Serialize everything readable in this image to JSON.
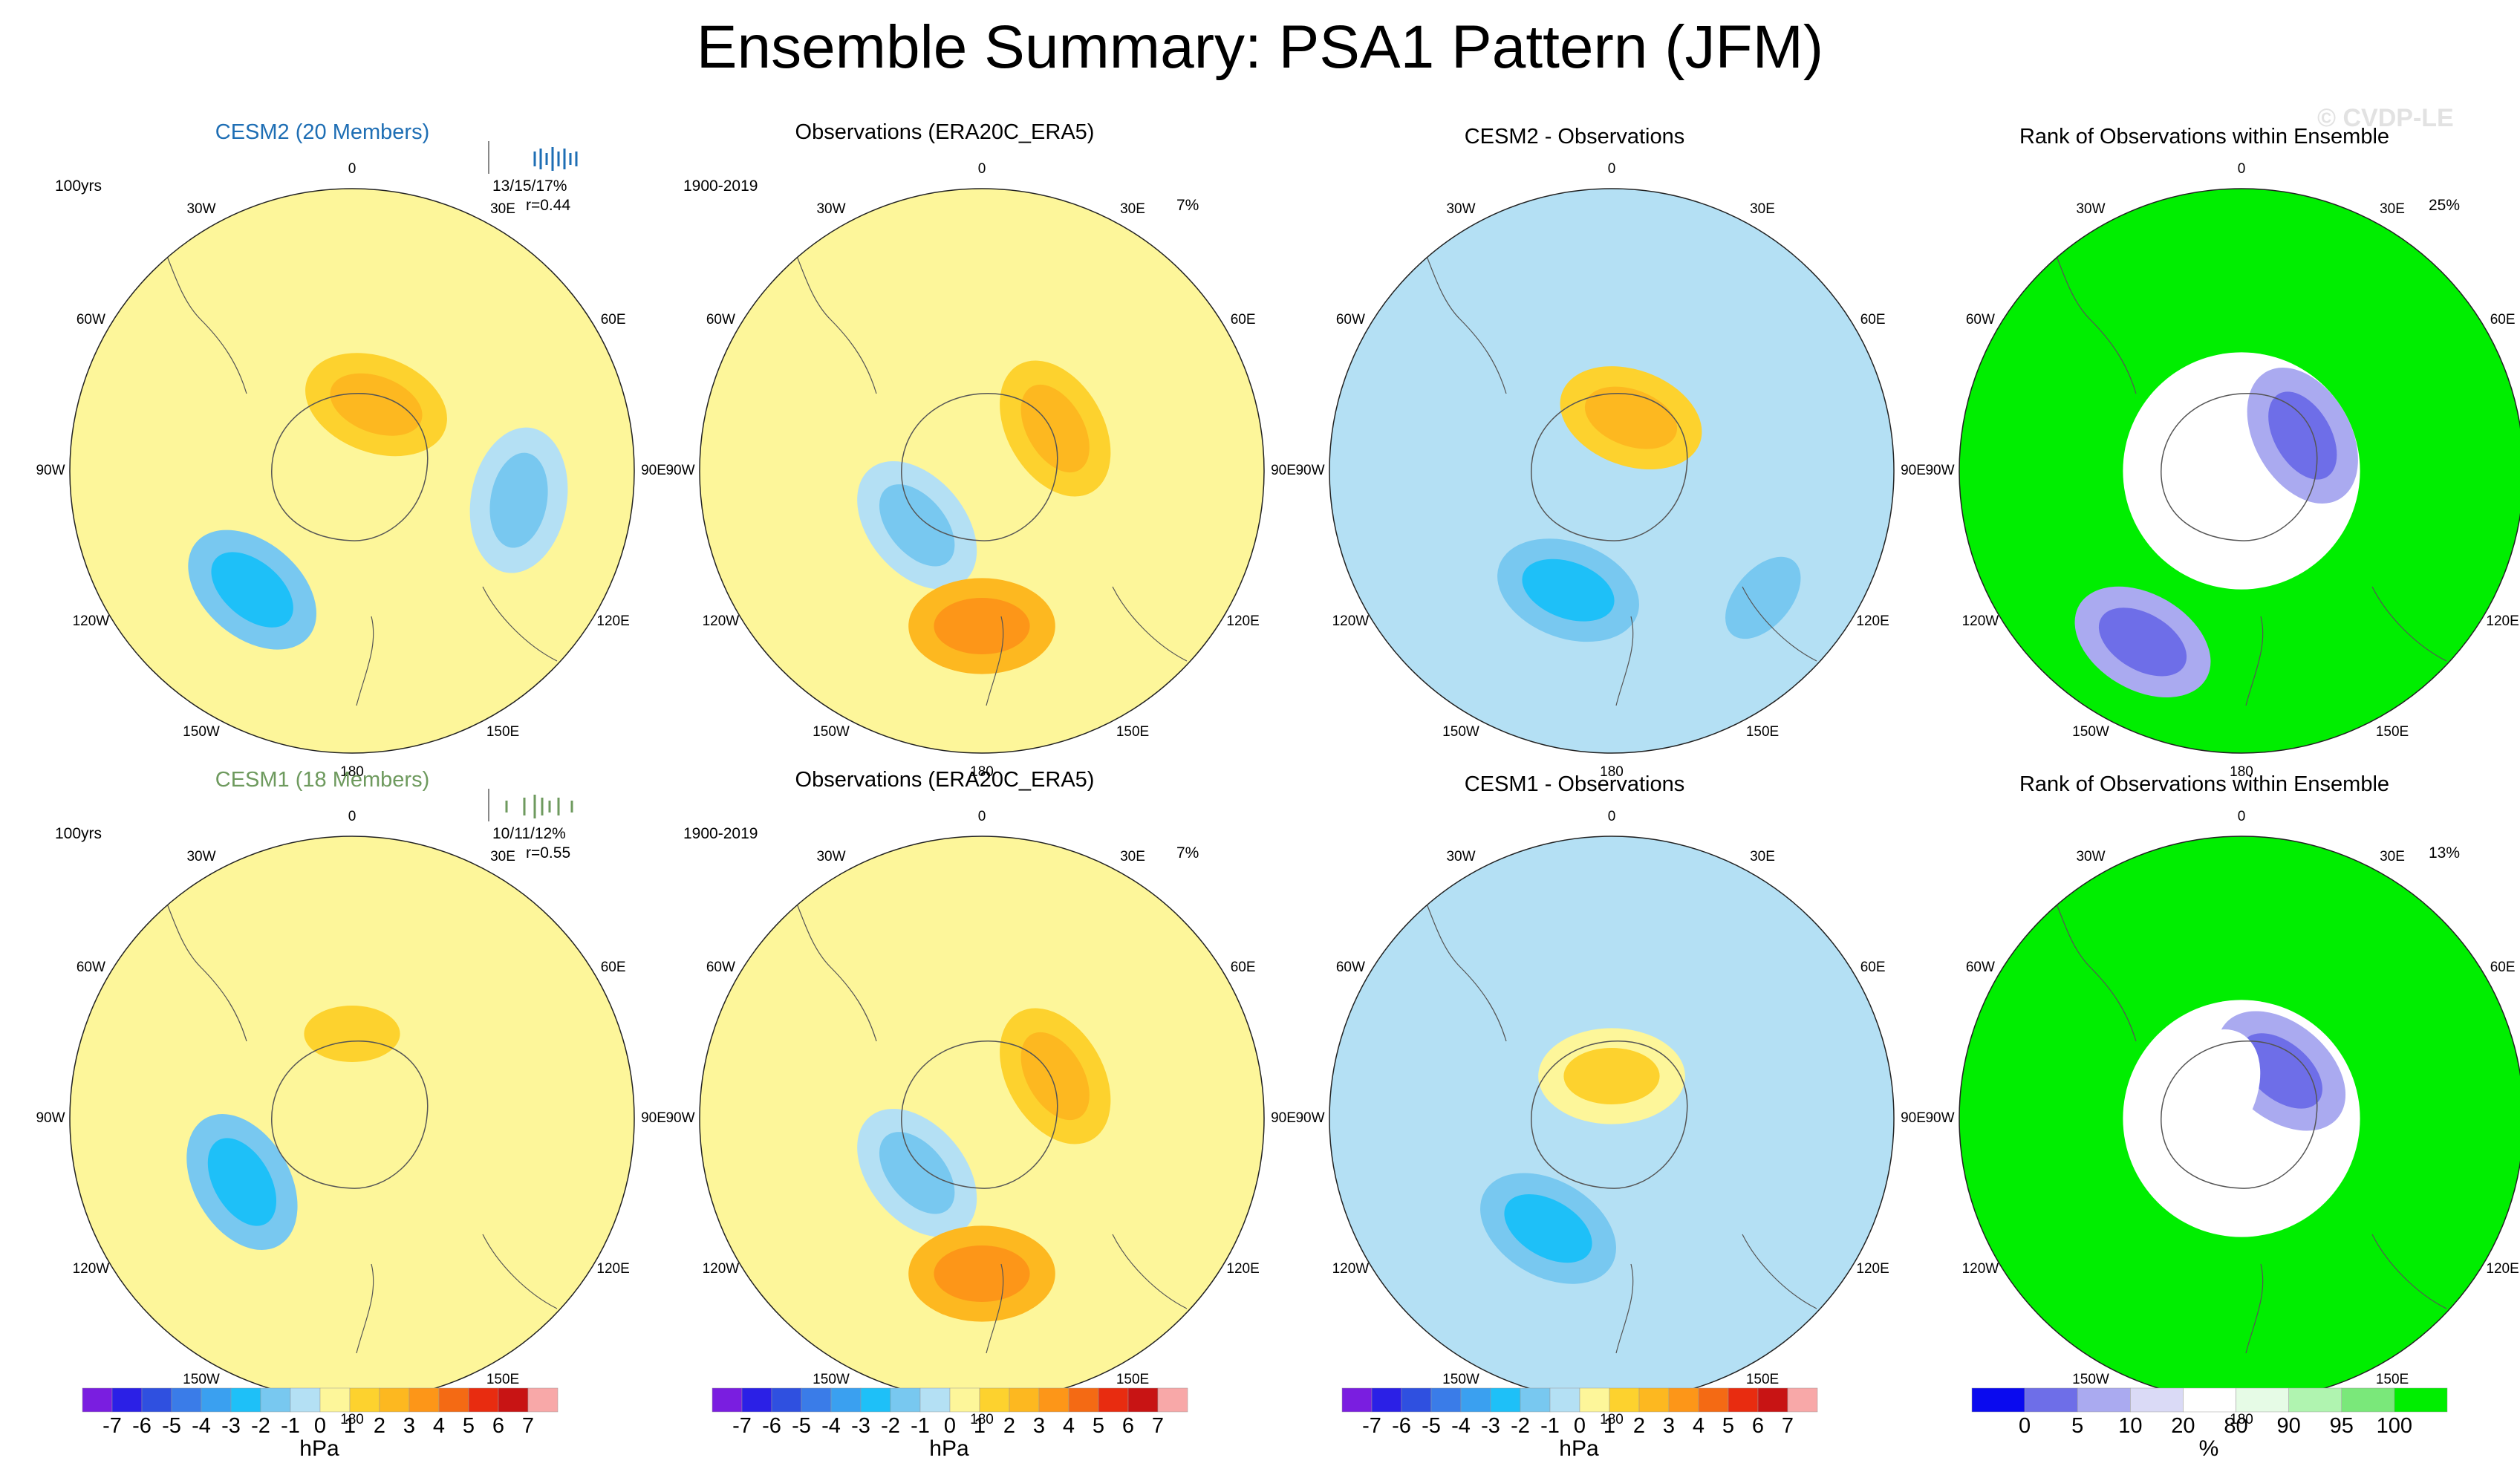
{
  "page": {
    "title": "Ensemble Summary: PSA1 Pattern (JFM)",
    "watermark": "© CVDP-LE"
  },
  "lon_labels": [
    "0",
    "30E",
    "60E",
    "90E",
    "120E",
    "150E",
    "180",
    "150W",
    "120W",
    "90W",
    "60W",
    "30W"
  ],
  "colors": {
    "hpa": [
      "#7a1ee0",
      "#2b20e6",
      "#2f50e0",
      "#3a7ce8",
      "#3aa0f0",
      "#1ec0f8",
      "#78c8f0",
      "#b4e0f4",
      "#fdf69a",
      "#fdd22e",
      "#fdb820",
      "#fd9618",
      "#f46a14",
      "#e82c10",
      "#c81414",
      "#f8a8a8"
    ],
    "rank": [
      "#0a0aef",
      "#6e6ee8",
      "#aaaaf0",
      "#dadaf6",
      "#ffffff",
      "#e6fbe6",
      "#b0f4b0",
      "#7ae87a",
      "#00ee00"
    ]
  },
  "colorbars": {
    "hpa": {
      "units": "hPa",
      "ticks": [
        "-7",
        "-6",
        "-5",
        "-4",
        "-3",
        "-2",
        "-1",
        "0",
        "1",
        "2",
        "3",
        "4",
        "5",
        "6",
        "7"
      ]
    },
    "rank": {
      "units": "%",
      "ticks": [
        "0",
        "5",
        "10",
        "20",
        "80",
        "90",
        "95",
        "100"
      ]
    }
  },
  "chart_data": [
    {
      "type": "heatmap",
      "title": "CESM2 (20 Members)",
      "title_color": "#1e6eb4",
      "left_text": "100yrs",
      "right_text": "13/15/17%",
      "right_text2": "r=0.44",
      "units": "hPa",
      "clim": [
        -7,
        7
      ],
      "panel_kind": "model",
      "features": [
        {
          "lon": 220,
          "colat": 0.55,
          "value": -3
        },
        {
          "lon": 20,
          "colat": 0.25,
          "value": 2
        },
        {
          "lon": 100,
          "colat": 0.6,
          "value": -2
        }
      ]
    },
    {
      "type": "heatmap",
      "title": "Observations (ERA20C_ERA5)",
      "left_text": "1900-2019",
      "right_text": "7%",
      "units": "hPa",
      "clim": [
        -7,
        7
      ],
      "panel_kind": "obs",
      "features": [
        {
          "lon": 230,
          "colat": 0.3,
          "value": -2
        },
        {
          "lon": 180,
          "colat": 0.55,
          "value": 3
        },
        {
          "lon": 60,
          "colat": 0.3,
          "value": 2
        }
      ]
    },
    {
      "type": "heatmap",
      "title": "CESM2 - Observations",
      "units": "hPa",
      "clim": [
        -7,
        7
      ],
      "panel_kind": "diff",
      "features": [
        {
          "lon": 200,
          "colat": 0.45,
          "value": -3
        },
        {
          "lon": 20,
          "colat": 0.2,
          "value": 2
        },
        {
          "lon": 130,
          "colat": 0.7,
          "value": -2
        }
      ]
    },
    {
      "type": "heatmap",
      "title": "Rank of Observations within Ensemble",
      "right_text": "25%",
      "units": "%",
      "clim": [
        0,
        100
      ],
      "panel_kind": "rank",
      "features": [
        {
          "lon": 60,
          "colat": 0.25,
          "value": 0
        },
        {
          "lon": 210,
          "colat": 0.7,
          "value": 0
        }
      ]
    },
    {
      "type": "heatmap",
      "title": "CESM1 (18 Members)",
      "title_color": "#6e9a5e",
      "left_text": "100yrs",
      "right_text": "10/11/12%",
      "right_text2": "r=0.55",
      "units": "hPa",
      "clim": [
        -7,
        7
      ],
      "panel_kind": "model",
      "features": [
        {
          "lon": 240,
          "colat": 0.45,
          "value": -3
        },
        {
          "lon": 0,
          "colat": 0.3,
          "value": 1
        }
      ]
    },
    {
      "type": "heatmap",
      "title": "Observations (ERA20C_ERA5)",
      "left_text": "1900-2019",
      "right_text": "7%",
      "units": "hPa",
      "clim": [
        -7,
        7
      ],
      "panel_kind": "obs",
      "features": [
        {
          "lon": 230,
          "colat": 0.3,
          "value": -2
        },
        {
          "lon": 180,
          "colat": 0.55,
          "value": 3
        },
        {
          "lon": 60,
          "colat": 0.3,
          "value": 2
        }
      ]
    },
    {
      "type": "heatmap",
      "title": "CESM1 - Observations",
      "units": "hPa",
      "clim": [
        -7,
        7
      ],
      "panel_kind": "diff",
      "features": [
        {
          "lon": 210,
          "colat": 0.45,
          "value": -3
        },
        {
          "lon": 0,
          "colat": 0.15,
          "value": 1
        }
      ]
    },
    {
      "type": "heatmap",
      "title": "Rank of Observations within Ensemble",
      "right_text": "13%",
      "units": "%",
      "clim": [
        0,
        100
      ],
      "panel_kind": "rank",
      "features": [
        {
          "lon": 40,
          "colat": 0.22,
          "value": 0
        },
        {
          "lon": 300,
          "colat": 0.15,
          "value": 20
        }
      ]
    }
  ]
}
